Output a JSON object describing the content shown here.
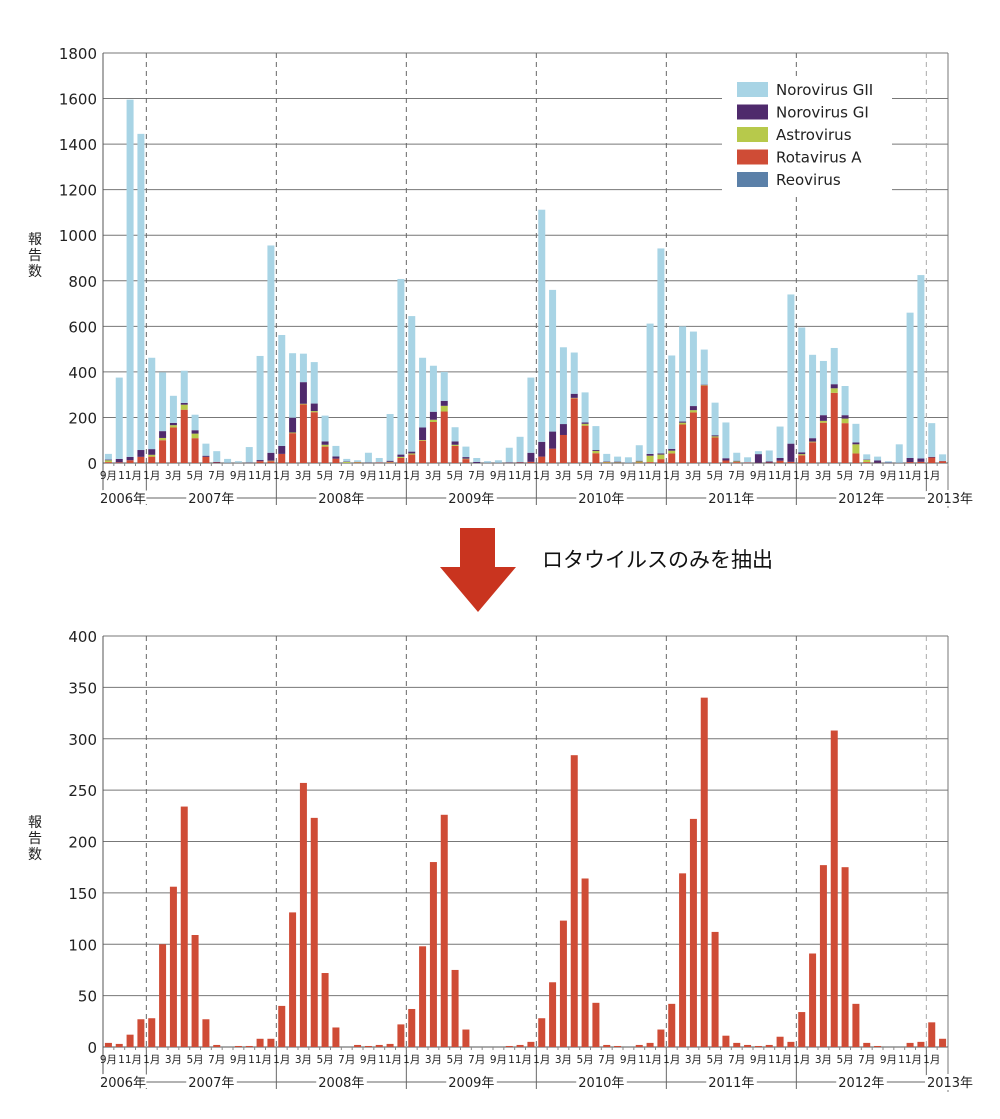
{
  "caption": "ロタウイルスのみを抽出",
  "colors": {
    "norovirus_gii": "#a8d4e5",
    "norovirus_gi": "#4f2a6c",
    "astrovirus": "#b7c94b",
    "rotavirus_a": "#cf4c36",
    "reovirus": "#5b80a8",
    "arrow": "#c9341f"
  },
  "chart_data": [
    {
      "type": "bar",
      "stacked": true,
      "title": "",
      "xlabel": "",
      "ylabel": "報告数",
      "ylim": [
        0,
        1800
      ],
      "yticks": [
        0,
        200,
        400,
        600,
        800,
        1000,
        1200,
        1400,
        1600,
        1800
      ],
      "grid": true,
      "legend_position": "top-right",
      "start_month": "2006-09",
      "month_labels": [
        "9月",
        "11月",
        "1月",
        "3月",
        "5月",
        "7月",
        "9月",
        "11月",
        "1月",
        "3月",
        "5月",
        "7月",
        "9月",
        "11月",
        "1月",
        "3月",
        "5月",
        "7月",
        "9月",
        "11月",
        "1月",
        "3月",
        "5月",
        "7月",
        "9月",
        "11月",
        "1月",
        "3月",
        "5月",
        "7月",
        "9月",
        "11月",
        "1月",
        "3月",
        "5月",
        "7月",
        "9月",
        "11月",
        "1月"
      ],
      "year_labels": [
        "2006年",
        "2007年",
        "2008年",
        "2009年",
        "2010年",
        "2011年",
        "2012年",
        "2013年"
      ],
      "series": [
        {
          "name": "Norovirus GII",
          "color_key": "norovirus_gii",
          "values": [
            25,
            357,
            1568,
            1388,
            401,
            258,
            119,
            141,
            68,
            53,
            47,
            17,
            7,
            68,
            457,
            910,
            487,
            283,
            125,
            182,
            113,
            46,
            11,
            7,
            43,
            19,
            205,
            771,
            595,
            306,
            202,
            127,
            62,
            46,
            17,
            7,
            11,
            64,
            111,
            330,
            1019,
            622,
            337,
            181,
            132,
            105,
            33,
            22,
            24,
            68,
            572,
            900,
            410,
            418,
            327,
            154,
            143,
            157,
            35,
            22,
            13,
            48,
            138,
            655,
            548,
            366,
            238,
            159,
            128,
            82,
            22,
            17,
            6,
            81,
            638,
            805,
            148,
            29
          ]
        },
        {
          "name": "Norovirus GI",
          "color_key": "norovirus_gi",
          "values": [
            3,
            15,
            15,
            30,
            25,
            30,
            10,
            8,
            15,
            5,
            3,
            1,
            0,
            1,
            5,
            35,
            35,
            65,
            95,
            33,
            15,
            10,
            2,
            1,
            1,
            1,
            5,
            10,
            8,
            55,
            35,
            22,
            15,
            7,
            5,
            1,
            1,
            2,
            2,
            40,
            65,
            75,
            48,
            18,
            6,
            4,
            2,
            3,
            1,
            3,
            8,
            5,
            8,
            5,
            18,
            2,
            5,
            10,
            3,
            1,
            38,
            5,
            12,
            80,
            8,
            15,
            25,
            18,
            15,
            8,
            2,
            10,
            2,
            1,
            18,
            15,
            3,
            1
          ]
        },
        {
          "name": "Astrovirus",
          "color_key": "astrovirus",
          "values": [
            8,
            0,
            0,
            0,
            8,
            10,
            10,
            22,
            20,
            0,
            0,
            0,
            0,
            0,
            0,
            2,
            0,
            3,
            3,
            5,
            8,
            0,
            5,
            2,
            0,
            0,
            2,
            5,
            5,
            3,
            10,
            25,
            5,
            2,
            0,
            0,
            0,
            0,
            0,
            0,
            0,
            0,
            0,
            2,
            8,
            10,
            3,
            2,
            0,
            5,
            28,
            20,
            12,
            8,
            10,
            2,
            5,
            0,
            3,
            0,
            0,
            0,
            0,
            0,
            5,
            3,
            8,
            20,
            20,
            40,
            10,
            0,
            0,
            0,
            0,
            0,
            0,
            0
          ]
        },
        {
          "name": "Rotavirus A",
          "color_key": "rotavirus_a",
          "values": [
            4,
            3,
            12,
            27,
            28,
            100,
            156,
            234,
            109,
            27,
            2,
            0,
            1,
            1,
            8,
            8,
            40,
            131,
            257,
            223,
            72,
            19,
            0,
            2,
            1,
            2,
            3,
            22,
            37,
            98,
            180,
            226,
            75,
            17,
            0,
            0,
            0,
            1,
            2,
            5,
            28,
            63,
            123,
            284,
            164,
            43,
            2,
            1,
            0,
            2,
            4,
            17,
            42,
            169,
            222,
            340,
            112,
            11,
            4,
            2,
            1,
            2,
            10,
            5,
            34,
            91,
            177,
            308,
            175,
            42,
            4,
            1,
            0,
            0,
            4,
            5,
            24,
            8
          ]
        },
        {
          "name": "Reovirus",
          "color_key": "reovirus",
          "values": [
            0,
            0,
            0,
            0,
            0,
            0,
            0,
            0,
            0,
            0,
            0,
            0,
            0,
            0,
            0,
            0,
            0,
            0,
            0,
            0,
            0,
            0,
            0,
            0,
            0,
            0,
            0,
            0,
            0,
            0,
            0,
            0,
            0,
            0,
            0,
            0,
            0,
            0,
            0,
            0,
            0,
            0,
            0,
            0,
            0,
            0,
            0,
            0,
            0,
            0,
            0,
            0,
            0,
            0,
            0,
            0,
            0,
            0,
            0,
            0,
            0,
            0,
            0,
            0,
            0,
            0,
            0,
            0,
            0,
            0,
            0,
            0,
            0,
            0,
            0,
            0,
            0,
            0
          ]
        }
      ]
    },
    {
      "type": "bar",
      "title": "",
      "xlabel": "",
      "ylabel": "報告数",
      "ylim": [
        0,
        400
      ],
      "yticks": [
        0,
        50,
        100,
        150,
        200,
        250,
        300,
        350,
        400
      ],
      "grid": true,
      "start_month": "2006-09",
      "month_labels": [
        "9月",
        "11月",
        "1月",
        "3月",
        "5月",
        "7月",
        "9月",
        "11月",
        "1月",
        "3月",
        "5月",
        "7月",
        "9月",
        "11月",
        "1月",
        "3月",
        "5月",
        "7月",
        "9月",
        "11月",
        "1月",
        "3月",
        "5月",
        "7月",
        "9月",
        "11月",
        "1月",
        "3月",
        "5月",
        "7月",
        "9月",
        "11月",
        "1月",
        "3月",
        "5月",
        "7月",
        "9月",
        "11月",
        "1月"
      ],
      "year_labels": [
        "2006年",
        "2007年",
        "2008年",
        "2009年",
        "2010年",
        "2011年",
        "2012年",
        "2013年"
      ],
      "series": [
        {
          "name": "Rotavirus A",
          "color_key": "rotavirus_a",
          "values": [
            4,
            3,
            12,
            27,
            28,
            100,
            156,
            234,
            109,
            27,
            2,
            0,
            1,
            1,
            8,
            8,
            40,
            131,
            257,
            223,
            72,
            19,
            0,
            2,
            1,
            2,
            3,
            22,
            37,
            98,
            180,
            226,
            75,
            17,
            0,
            0,
            0,
            1,
            2,
            5,
            28,
            63,
            123,
            284,
            164,
            43,
            2,
            1,
            0,
            2,
            4,
            17,
            42,
            169,
            222,
            340,
            112,
            11,
            4,
            2,
            1,
            2,
            10,
            5,
            34,
            91,
            177,
            308,
            175,
            42,
            4,
            1,
            0,
            0,
            4,
            5,
            24,
            8
          ]
        }
      ]
    }
  ]
}
